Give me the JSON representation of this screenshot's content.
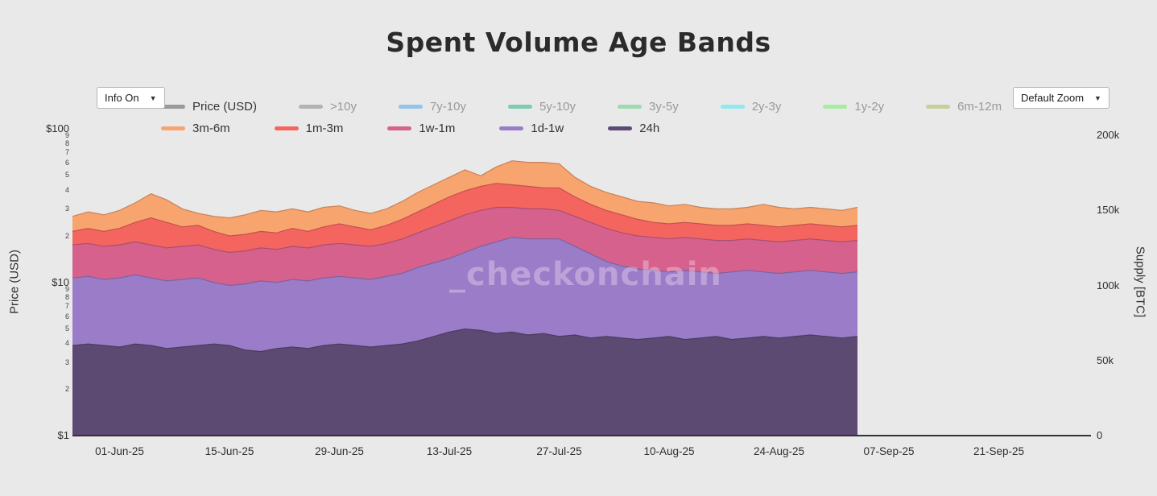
{
  "title": "Spent Volume Age Bands",
  "controls": {
    "info": "Info On",
    "zoom": "Default Zoom",
    "arrow": "▼"
  },
  "watermark": "_checkonchain",
  "legend": {
    "rows": [
      [
        {
          "label": "Price (USD)",
          "color": "#9a9a9a",
          "active": true
        },
        {
          "label": ">10y",
          "color": "#b3b3b3",
          "active": false
        },
        {
          "label": "7y-10y",
          "color": "#92c5e8",
          "active": false
        },
        {
          "label": "5y-10y",
          "color": "#7fcbb5",
          "active": false
        },
        {
          "label": "3y-5y",
          "color": "#9ed9b2",
          "active": false
        },
        {
          "label": "2y-3y",
          "color": "#90e9ef",
          "active": false
        },
        {
          "label": "1y-2y",
          "color": "#a9eba3",
          "active": false
        },
        {
          "label": "6m-12m",
          "color": "#c9cf9c",
          "active": false
        }
      ],
      [
        {
          "label": "3m-6m",
          "color": "#f8a46f",
          "active": true
        },
        {
          "label": "1m-3m",
          "color": "#f4655f",
          "active": true
        },
        {
          "label": "1w-1m",
          "color": "#d5618c",
          "active": true
        },
        {
          "label": "1d-1w",
          "color": "#9a7cc9",
          "active": true
        },
        {
          "label": "24h",
          "color": "#5d4a73",
          "active": true
        }
      ]
    ]
  },
  "axes": {
    "left": {
      "title": "Price (USD)",
      "scale": "log",
      "major": [
        "$100",
        "$10",
        "$1"
      ],
      "minor": [
        "9",
        "8",
        "7",
        "6",
        "5",
        "4",
        "3",
        "2"
      ]
    },
    "right": {
      "title": "Supply [BTC]",
      "ticks": [
        "200k",
        "150k",
        "100k",
        "50k",
        "0"
      ]
    },
    "x": {
      "ticks": [
        "01-Jun-25",
        "15-Jun-25",
        "29-Jun-25",
        "13-Jul-25",
        "27-Jul-25",
        "10-Aug-25",
        "24-Aug-25",
        "07-Sep-25",
        "21-Sep-25"
      ]
    }
  },
  "chart_data": {
    "type": "area",
    "stacked": true,
    "title": "Spent Volume Age Bands",
    "x_tick_labels": [
      "01-Jun-25",
      "15-Jun-25",
      "29-Jun-25",
      "13-Jul-25",
      "27-Jul-25",
      "10-Aug-25",
      "24-Aug-25",
      "07-Sep-25",
      "21-Sep-25"
    ],
    "x_days_from_plot_start": [
      0,
      2,
      4,
      6,
      8,
      10,
      12,
      14,
      16,
      18,
      20,
      22,
      24,
      26,
      28,
      30,
      32,
      34,
      36,
      38,
      40,
      42,
      44,
      46,
      48,
      50,
      52,
      54,
      56,
      58,
      60,
      62,
      64,
      66,
      68,
      70,
      72,
      74,
      76,
      78,
      80,
      82,
      84,
      86,
      88,
      90,
      92,
      94,
      96,
      98,
      100
    ],
    "y_right": {
      "label": "Supply [BTC]",
      "ticks": [
        "200k",
        "150k",
        "100k",
        "50k",
        "0"
      ],
      "range_thousand_btc": [
        0,
        200
      ]
    },
    "y_left": {
      "label": "Price (USD)",
      "scale": "log",
      "ticks": [
        "$100",
        "$10",
        "$1"
      ]
    },
    "series": [
      {
        "name": "24h",
        "color": "#5d4a73",
        "values_thousand_btc": [
          60,
          61,
          60,
          59,
          61,
          60,
          58,
          59,
          60,
          61,
          60,
          57,
          56,
          58,
          59,
          58,
          60,
          61,
          60,
          59,
          60,
          61,
          63,
          66,
          69,
          71,
          70,
          68,
          69,
          67,
          68,
          66,
          67,
          65,
          66,
          65,
          64,
          65,
          66,
          64,
          65,
          66,
          64,
          65,
          66,
          65,
          66,
          67,
          66,
          65,
          66
        ]
      },
      {
        "name": "1d-1w",
        "color": "#9a7cc9",
        "values_thousand_btc": [
          45,
          45,
          44,
          46,
          46,
          45,
          45,
          45,
          45,
          41,
          40,
          44,
          47,
          44,
          45,
          45,
          45,
          45,
          45,
          45,
          46,
          47,
          49,
          49,
          49,
          51,
          56,
          61,
          63,
          64,
          63,
          65,
          59,
          56,
          50,
          48,
          47,
          45,
          43,
          46,
          44,
          42,
          45,
          45,
          43,
          43,
          43,
          43,
          43,
          43,
          43
        ]
      },
      {
        "name": "1w-1m",
        "color": "#d5618c",
        "values_thousand_btc": [
          22,
          22,
          22,
          22,
          22,
          22,
          22,
          22,
          22,
          22,
          22,
          22,
          22,
          22,
          22,
          22,
          22,
          22,
          22,
          22,
          22,
          23,
          23,
          24,
          25,
          25,
          24,
          23,
          20,
          20,
          20,
          19,
          20,
          21,
          22,
          22,
          22,
          22,
          22,
          22,
          22,
          22,
          21,
          21,
          21,
          21,
          21,
          21,
          21,
          21,
          21
        ]
      },
      {
        "name": "1m-3m",
        "color": "#f4655f",
        "values_thousand_btc": [
          9,
          10,
          10,
          11,
          13,
          18,
          17,
          13,
          13,
          12,
          11,
          11,
          11,
          11,
          12,
          11,
          12,
          13,
          12,
          11,
          12,
          13,
          14,
          15,
          16,
          16,
          16,
          16,
          15,
          15,
          14,
          15,
          13,
          12,
          12,
          12,
          11,
          10,
          10,
          10,
          10,
          10,
          10,
          10,
          10,
          10,
          10,
          10,
          10,
          10,
          10
        ]
      },
      {
        "name": "3m-6m",
        "color": "#f8a46f",
        "values_thousand_btc": [
          10,
          11,
          11,
          12,
          13,
          16,
          15,
          12,
          8,
          10,
          12,
          13,
          14,
          14,
          13,
          13,
          13,
          12,
          11,
          11,
          11,
          12,
          13,
          13,
          13,
          14,
          7,
          11,
          16,
          16,
          17,
          16,
          13,
          12,
          12,
          12,
          12,
          13,
          12,
          12,
          11,
          11,
          11,
          11,
          14,
          13,
          11,
          11,
          11,
          11,
          12
        ]
      }
    ],
    "inactive_series": [
      ">10y",
      "7y-10y",
      "5y-10y",
      "3y-5y",
      "2y-3y",
      "1y-2y",
      "6m-12m"
    ],
    "watermark": "_checkonchain"
  }
}
